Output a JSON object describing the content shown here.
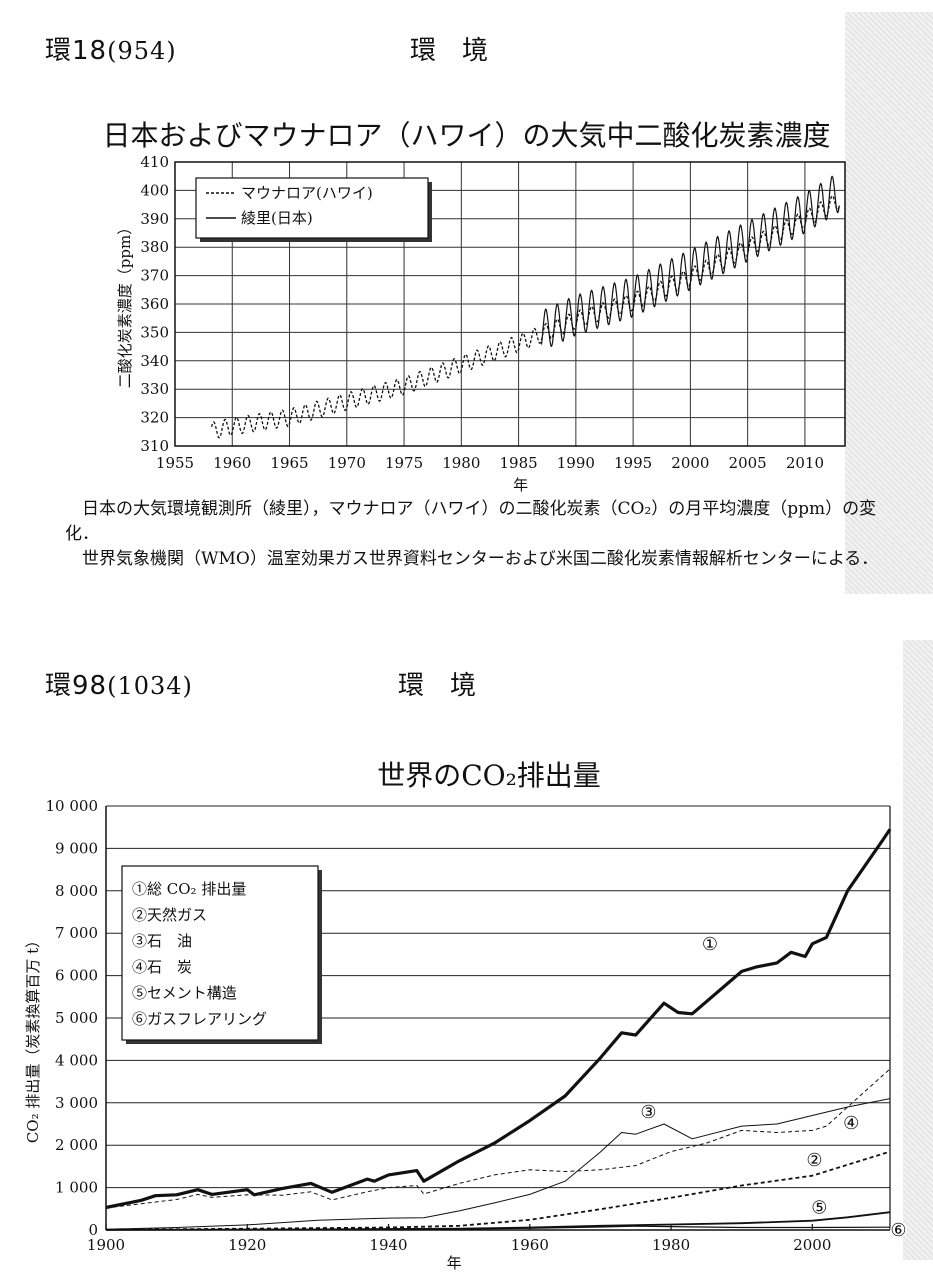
{
  "top_section": {
    "page_code": "環",
    "page_number": "18",
    "page_ref": "(954)",
    "section_title": "環境"
  },
  "bottom_section": {
    "page_code": "環",
    "page_number": "98",
    "page_ref": "(1034)",
    "section_title": "環境"
  },
  "chart_data": [
    {
      "type": "line",
      "title": "日本およびマウナロア（ハワイ）の大気中二酸化炭素濃度",
      "xlabel": "年",
      "ylabel": "二酸化炭素濃度（ppm）",
      "xlim": [
        1955,
        2013.5
      ],
      "ylim": [
        310,
        410
      ],
      "x_ticks": [
        1955,
        1960,
        1965,
        1970,
        1975,
        1980,
        1985,
        1990,
        1995,
        2000,
        2005,
        2010
      ],
      "y_ticks": [
        310,
        320,
        330,
        340,
        350,
        360,
        370,
        380,
        390,
        400,
        410
      ],
      "grid": true,
      "legend_position": "top-left",
      "series": [
        {
          "name": "マウナロア(ハワイ)",
          "style": "dashed",
          "x": [
            1958.2,
            1960,
            1965,
            1970,
            1975,
            1980,
            1985,
            1990,
            1995,
            2000,
            2005,
            2010,
            2013
          ],
          "y": [
            315.3,
            316.9,
            320.0,
            325.7,
            331.1,
            338.7,
            346.1,
            354.4,
            360.8,
            369.6,
            379.8,
            389.9,
            396.5
          ],
          "seasonal_amplitude": 3
        },
        {
          "name": "綾里(日本)",
          "style": "solid",
          "x": [
            1987,
            1990,
            1995,
            2000,
            2005,
            2010,
            2013
          ],
          "y": [
            350.5,
            356.0,
            362.5,
            372.0,
            382.0,
            392.0,
            399.5
          ],
          "seasonal_amplitude": 7
        }
      ]
    },
    {
      "type": "line",
      "title": "世界のCO₂排出量",
      "xlabel": "年",
      "ylabel": "CO₂ 排出量（炭素換算百万 t）",
      "xlim": [
        1900,
        2011
      ],
      "ylim": [
        0,
        10000
      ],
      "x_ticks": [
        1900,
        1920,
        1940,
        1960,
        1980,
        2000
      ],
      "y_ticks": [
        0,
        1000,
        2000,
        3000,
        4000,
        5000,
        6000,
        7000,
        8000,
        9000,
        10000
      ],
      "y_tick_labels": [
        "0",
        "1 000",
        "2 000",
        "3 000",
        "4 000",
        "5 000",
        "6 000",
        "7 000",
        "8 000",
        "9 000",
        "10 000"
      ],
      "grid": "horizontal",
      "legend_position": "top-left",
      "series": [
        {
          "name": "総 CO₂ 排出量",
          "marker": "①",
          "x": [
            1900,
            1905,
            1907,
            1910,
            1913,
            1915,
            1920,
            1921,
            1925,
            1929,
            1932,
            1937,
            1938,
            1940,
            1944,
            1945,
            1950,
            1955,
            1960,
            1965,
            1970,
            1973,
            1975,
            1979,
            1981,
            1983,
            1990,
            1992,
            1995,
            1997,
            1999,
            2000,
            2002,
            2005,
            2010,
            2011
          ],
          "y": [
            530,
            700,
            810,
            830,
            950,
            840,
            950,
            830,
            980,
            1100,
            890,
            1200,
            1150,
            1300,
            1400,
            1150,
            1630,
            2050,
            2580,
            3160,
            4060,
            4650,
            4600,
            5350,
            5130,
            5100,
            6100,
            6200,
            6300,
            6550,
            6450,
            6750,
            6900,
            8000,
            9200,
            9450
          ]
        },
        {
          "name": "天然ガス",
          "marker": "②",
          "x": [
            1900,
            1920,
            1940,
            1950,
            1960,
            1970,
            1980,
            1990,
            2000,
            2011
          ],
          "y": [
            5,
            30,
            60,
            100,
            240,
            490,
            760,
            1050,
            1280,
            1850
          ]
        },
        {
          "name": "石　油",
          "marker": "③",
          "x": [
            1900,
            1910,
            1920,
            1930,
            1940,
            1945,
            1950,
            1955,
            1960,
            1965,
            1970,
            1973,
            1975,
            1979,
            1983,
            1990,
            1995,
            2000,
            2005,
            2011
          ],
          "y": [
            20,
            60,
            120,
            230,
            280,
            290,
            450,
            640,
            840,
            1150,
            1840,
            2300,
            2260,
            2500,
            2150,
            2450,
            2500,
            2700,
            2900,
            3100
          ]
        },
        {
          "name": "石　炭",
          "marker": "④",
          "x": [
            1900,
            1905,
            1910,
            1913,
            1915,
            1920,
            1925,
            1929,
            1932,
            1937,
            1940,
            1944,
            1945,
            1950,
            1955,
            1960,
            1965,
            1970,
            1975,
            1980,
            1985,
            1990,
            1995,
            2000,
            2002,
            2005,
            2011
          ],
          "y": [
            520,
            620,
            720,
            840,
            770,
            830,
            820,
            900,
            710,
            900,
            1000,
            1050,
            850,
            1100,
            1300,
            1420,
            1380,
            1420,
            1520,
            1850,
            2050,
            2350,
            2300,
            2350,
            2450,
            2900,
            3800
          ]
        },
        {
          "name": "セメント構造",
          "marker": "⑤",
          "x": [
            1900,
            1930,
            1950,
            1960,
            1970,
            1980,
            1990,
            2000,
            2005,
            2011
          ],
          "y": [
            5,
            15,
            30,
            60,
            100,
            130,
            160,
            220,
            300,
            420
          ]
        },
        {
          "name": "ガスフレアリング",
          "marker": "⑥",
          "x": [
            1900,
            1940,
            1950,
            1960,
            1970,
            1975,
            1980,
            1990,
            2000,
            2011
          ],
          "y": [
            0,
            5,
            20,
            40,
            70,
            90,
            80,
            60,
            60,
            65
          ]
        }
      ]
    }
  ],
  "top_caption": {
    "line1": "日本の大気環境観測所（綾里），マウナロア（ハワイ）の二酸化炭素（CO₂）の月平均濃度（ppm）の変化．",
    "line2": "世界気象機関（WMO）温室効果ガス世界資料センターおよび米国二酸化炭素情報解析センターによる．"
  }
}
